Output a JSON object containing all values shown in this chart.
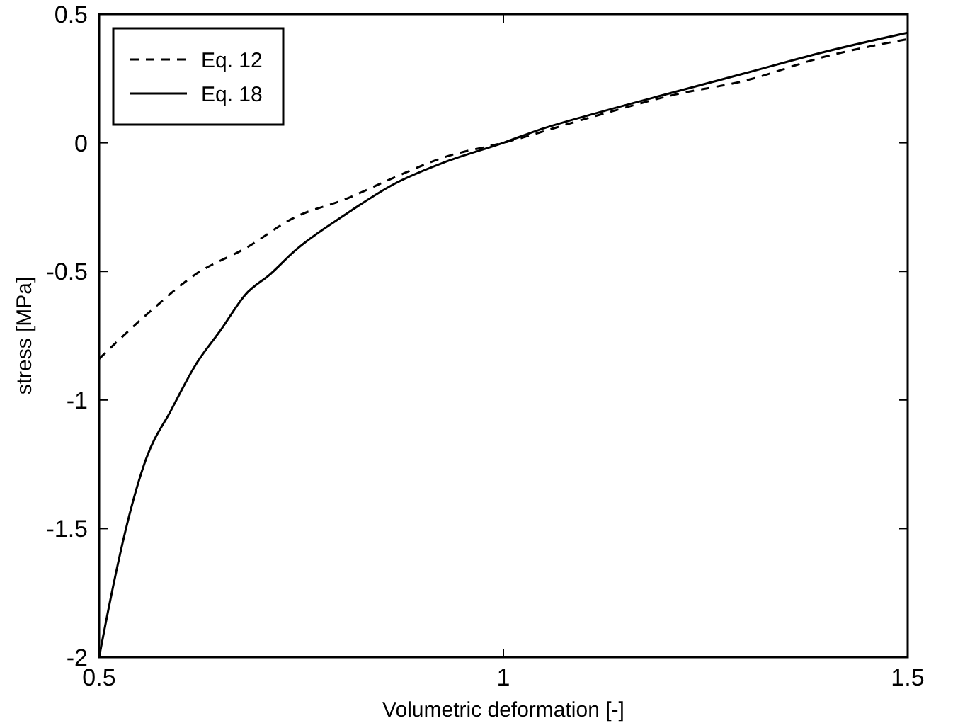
{
  "chart_data": {
    "type": "line",
    "xlabel": "Volumetric deformation [-]",
    "ylabel": "stress [MPa]",
    "xlim": [
      0.5,
      1.5
    ],
    "ylim": [
      -2,
      0.5
    ],
    "xticks": [
      0.5,
      1,
      1.5
    ],
    "yticks": [
      -2,
      -1.5,
      -1,
      -0.5,
      0,
      0.5
    ],
    "legend": "top left",
    "grid": false,
    "marker": "none",
    "series": [
      {
        "name": "Eq. 12",
        "color": "#000000",
        "line_style": "dashed",
        "x": [
          0.5,
          0.558,
          0.62,
          0.681,
          0.742,
          0.804,
          0.865,
          0.926,
          1,
          1.117,
          1.209,
          1.301,
          1.393,
          1.5
        ],
        "values": [
          -0.84,
          -0.67,
          -0.51,
          -0.41,
          -0.29,
          -0.22,
          -0.135,
          -0.057,
          0,
          0.107,
          0.185,
          0.243,
          0.331,
          0.403
        ]
      },
      {
        "name": "Eq. 18",
        "color": "#000000",
        "line_style": "solid",
        "x": [
          0.5,
          0.515,
          0.534,
          0.558,
          0.589,
          0.62,
          0.65,
          0.681,
          0.712,
          0.742,
          0.804,
          0.865,
          0.926,
          1,
          1.043,
          1.117,
          1.209,
          1.301,
          1.393,
          1.5
        ],
        "values": [
          -2,
          -1.76,
          -1.49,
          -1.23,
          -1.04,
          -0.86,
          -0.73,
          -0.59,
          -0.51,
          -0.42,
          -0.28,
          -0.16,
          -0.077,
          0,
          0.049,
          0.117,
          0.195,
          0.272,
          0.35,
          0.428
        ]
      }
    ]
  }
}
